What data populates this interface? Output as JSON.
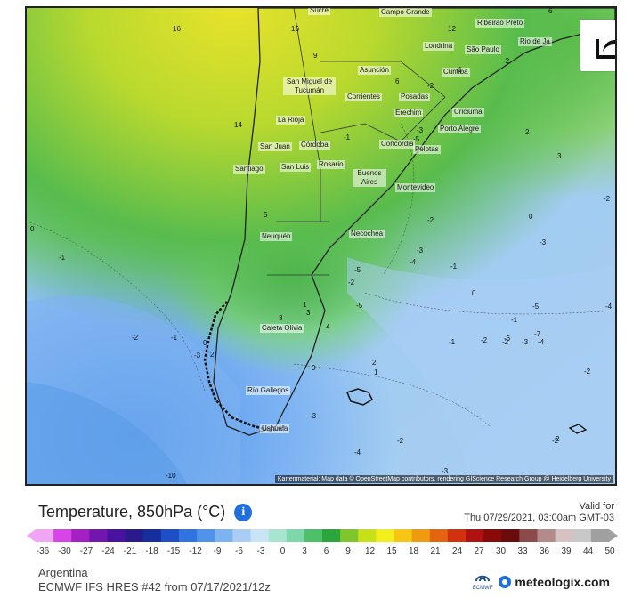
{
  "map": {
    "attribution": "Kartenmaterial: Map data © OpenStreetMap contributors, rendering GIScience Research Group @ Heidelberg University",
    "cities": [
      {
        "name": "Sucre"
      },
      {
        "name": "Campo Grande"
      },
      {
        "name": "Ribeirão Preto"
      },
      {
        "name": "Londrina"
      },
      {
        "name": "São Paulo"
      },
      {
        "name": "Rio de Ja"
      },
      {
        "name": "Asunción"
      },
      {
        "name": "Curitiba"
      },
      {
        "name": "San Miguel de Tucumán"
      },
      {
        "name": "Corrientes"
      },
      {
        "name": "Posadas"
      },
      {
        "name": "Erechim"
      },
      {
        "name": "Criciúma"
      },
      {
        "name": "La Rioja"
      },
      {
        "name": "Porto Alegre"
      },
      {
        "name": "Concordia"
      },
      {
        "name": "Pelotas"
      },
      {
        "name": "San Juan"
      },
      {
        "name": "Córdoba"
      },
      {
        "name": "Santiago"
      },
      {
        "name": "San Luis"
      },
      {
        "name": "Rosario"
      },
      {
        "name": "Buenos Aires"
      },
      {
        "name": "Montevideo"
      },
      {
        "name": "Neuquén"
      },
      {
        "name": "Necochea"
      },
      {
        "name": "Caleta Olivia"
      },
      {
        "name": "Río Gallegos"
      },
      {
        "name": "Ushuaia"
      }
    ],
    "isolines": [
      "16",
      "16",
      "6",
      "12",
      "9",
      "14",
      "6",
      "-1",
      "-2",
      "-2",
      "-5",
      "-3",
      "2",
      "3",
      "-1",
      "0",
      "-2",
      "-3",
      "-4",
      "-1",
      "0",
      "-2",
      "-5",
      "-2",
      "-5",
      "-2",
      "-3",
      "2",
      "1",
      "0",
      "-1",
      "-2",
      "-6",
      "-3",
      "-4",
      "-7",
      "-5",
      "-4",
      "-2",
      "-1",
      "0",
      "2",
      "-3",
      "-2",
      "-2",
      "-3",
      "-4",
      "-2",
      "-3",
      "-10",
      "2",
      "5",
      "3",
      "4",
      "3",
      "1",
      "-1",
      "0",
      "-1"
    ],
    "share_icon": "share-icon"
  },
  "footer": {
    "title": "Temperature, 850hPa (°C)",
    "valid_label": "Valid for",
    "valid_time": "Thu 07/29/2021, 03:00am GMT-03",
    "region": "Argentina",
    "model": "ECMWF IFS HRES #42 from 07/17/2021/12z",
    "ecmwf_logo": "ECMWF",
    "brand": "meteologix.com"
  },
  "legend": {
    "ticks": [
      "-36",
      "-30",
      "-27",
      "-24",
      "-21",
      "-18",
      "-15",
      "-12",
      "-9",
      "-6",
      "-3",
      "0",
      "3",
      "6",
      "9",
      "12",
      "15",
      "18",
      "21",
      "24",
      "27",
      "30",
      "33",
      "36",
      "39",
      "44",
      "50"
    ],
    "colors": [
      "#f0a6f5",
      "#d944e8",
      "#a51fc7",
      "#7216b0",
      "#4b11a0",
      "#2a1a8c",
      "#162e9e",
      "#1e4fc7",
      "#2f74e0",
      "#4f93eb",
      "#7eb3f1",
      "#a9cdf5",
      "#c9e3f7",
      "#a7e5d1",
      "#7ed7a8",
      "#4fc06a",
      "#2aa73a",
      "#7fc62c",
      "#c8e016",
      "#f3ef1a",
      "#f6c613",
      "#f09a10",
      "#e5640f",
      "#d3300d",
      "#b01212",
      "#8a0a0a",
      "#6b0c0c",
      "#8c4b4b",
      "#b58a8a",
      "#d6c2c2",
      "#c8c8c8",
      "#a0a0a0"
    ]
  }
}
